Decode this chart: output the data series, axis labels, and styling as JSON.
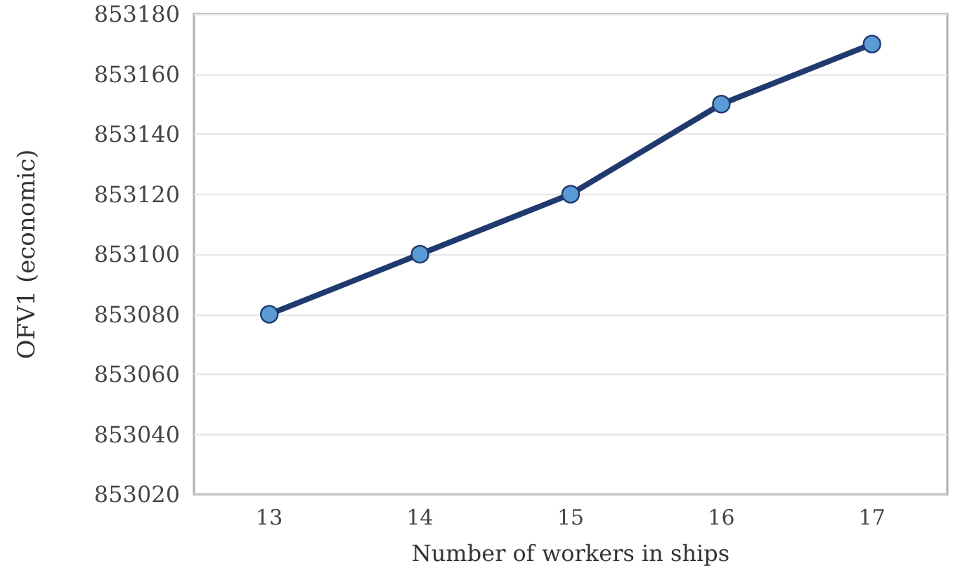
{
  "chart_data": {
    "type": "line",
    "xlabel": "Number of workers in ships",
    "ylabel": "OFV1 (economic)",
    "categories": [
      "13",
      "14",
      "15",
      "16",
      "17"
    ],
    "series": [
      {
        "color": "#1f3a6e",
        "values": [
          853080,
          853100,
          853120,
          853150,
          853170
        ]
      }
    ],
    "ylim": [
      853020,
      853180
    ],
    "yticks": [
      853020,
      853040,
      853060,
      853080,
      853100,
      853120,
      853140,
      853160,
      853180
    ],
    "grid": "y",
    "marker": "circle",
    "line_style": "solid"
  }
}
